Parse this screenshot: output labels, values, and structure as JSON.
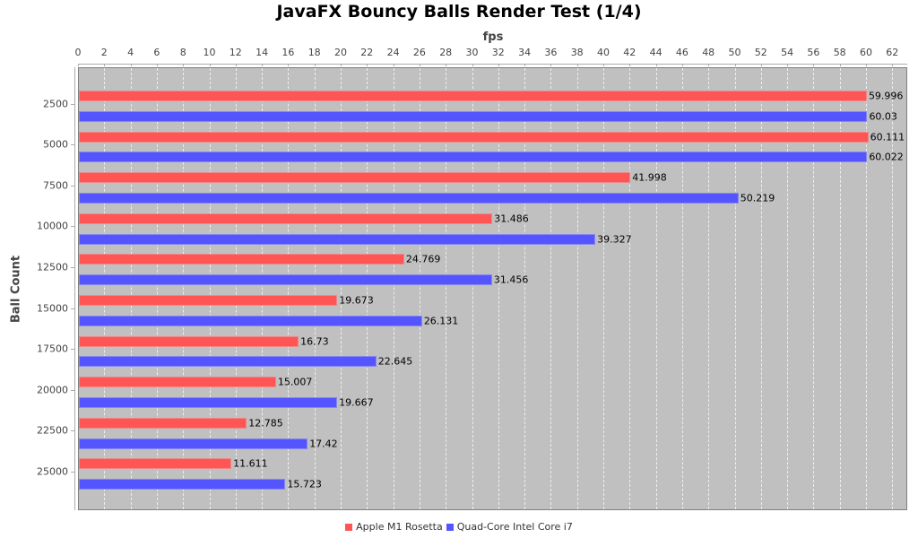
{
  "chart_data": {
    "type": "bar",
    "orientation": "horizontal",
    "title": "JavaFX Bouncy Balls Render Test (1/4)",
    "xlabel": "fps",
    "ylabel": "Ball Count",
    "xlim": [
      0,
      63
    ],
    "x_ticks": [
      0,
      2,
      4,
      6,
      8,
      10,
      12,
      14,
      16,
      18,
      20,
      22,
      24,
      26,
      28,
      30,
      32,
      34,
      36,
      38,
      40,
      42,
      44,
      46,
      48,
      50,
      52,
      54,
      56,
      58,
      60,
      62
    ],
    "grid": true,
    "legend_position": "bottom",
    "categories": [
      "2500",
      "5000",
      "7500",
      "10000",
      "12500",
      "15000",
      "17500",
      "20000",
      "22500",
      "25000"
    ],
    "series": [
      {
        "name": "Apple M1 Rosetta",
        "color": "#ff5555",
        "values": [
          59.996,
          60.111,
          41.998,
          31.486,
          24.769,
          19.673,
          16.73,
          15.007,
          12.785,
          11.611
        ],
        "labels": [
          "59.996",
          "60.111",
          "41.998",
          "31.486",
          "24.769",
          "19.673",
          "16.73",
          "15.007",
          "12.785",
          "11.611"
        ]
      },
      {
        "name": "Quad-Core Intel Core i7",
        "color": "#5555ff",
        "values": [
          60.03,
          60.022,
          50.219,
          39.327,
          31.456,
          26.131,
          22.645,
          19.667,
          17.42,
          15.723
        ],
        "labels": [
          "60.03",
          "60.022",
          "50.219",
          "39.327",
          "31.456",
          "26.131",
          "22.645",
          "19.667",
          "17.42",
          "15.723"
        ]
      }
    ]
  }
}
